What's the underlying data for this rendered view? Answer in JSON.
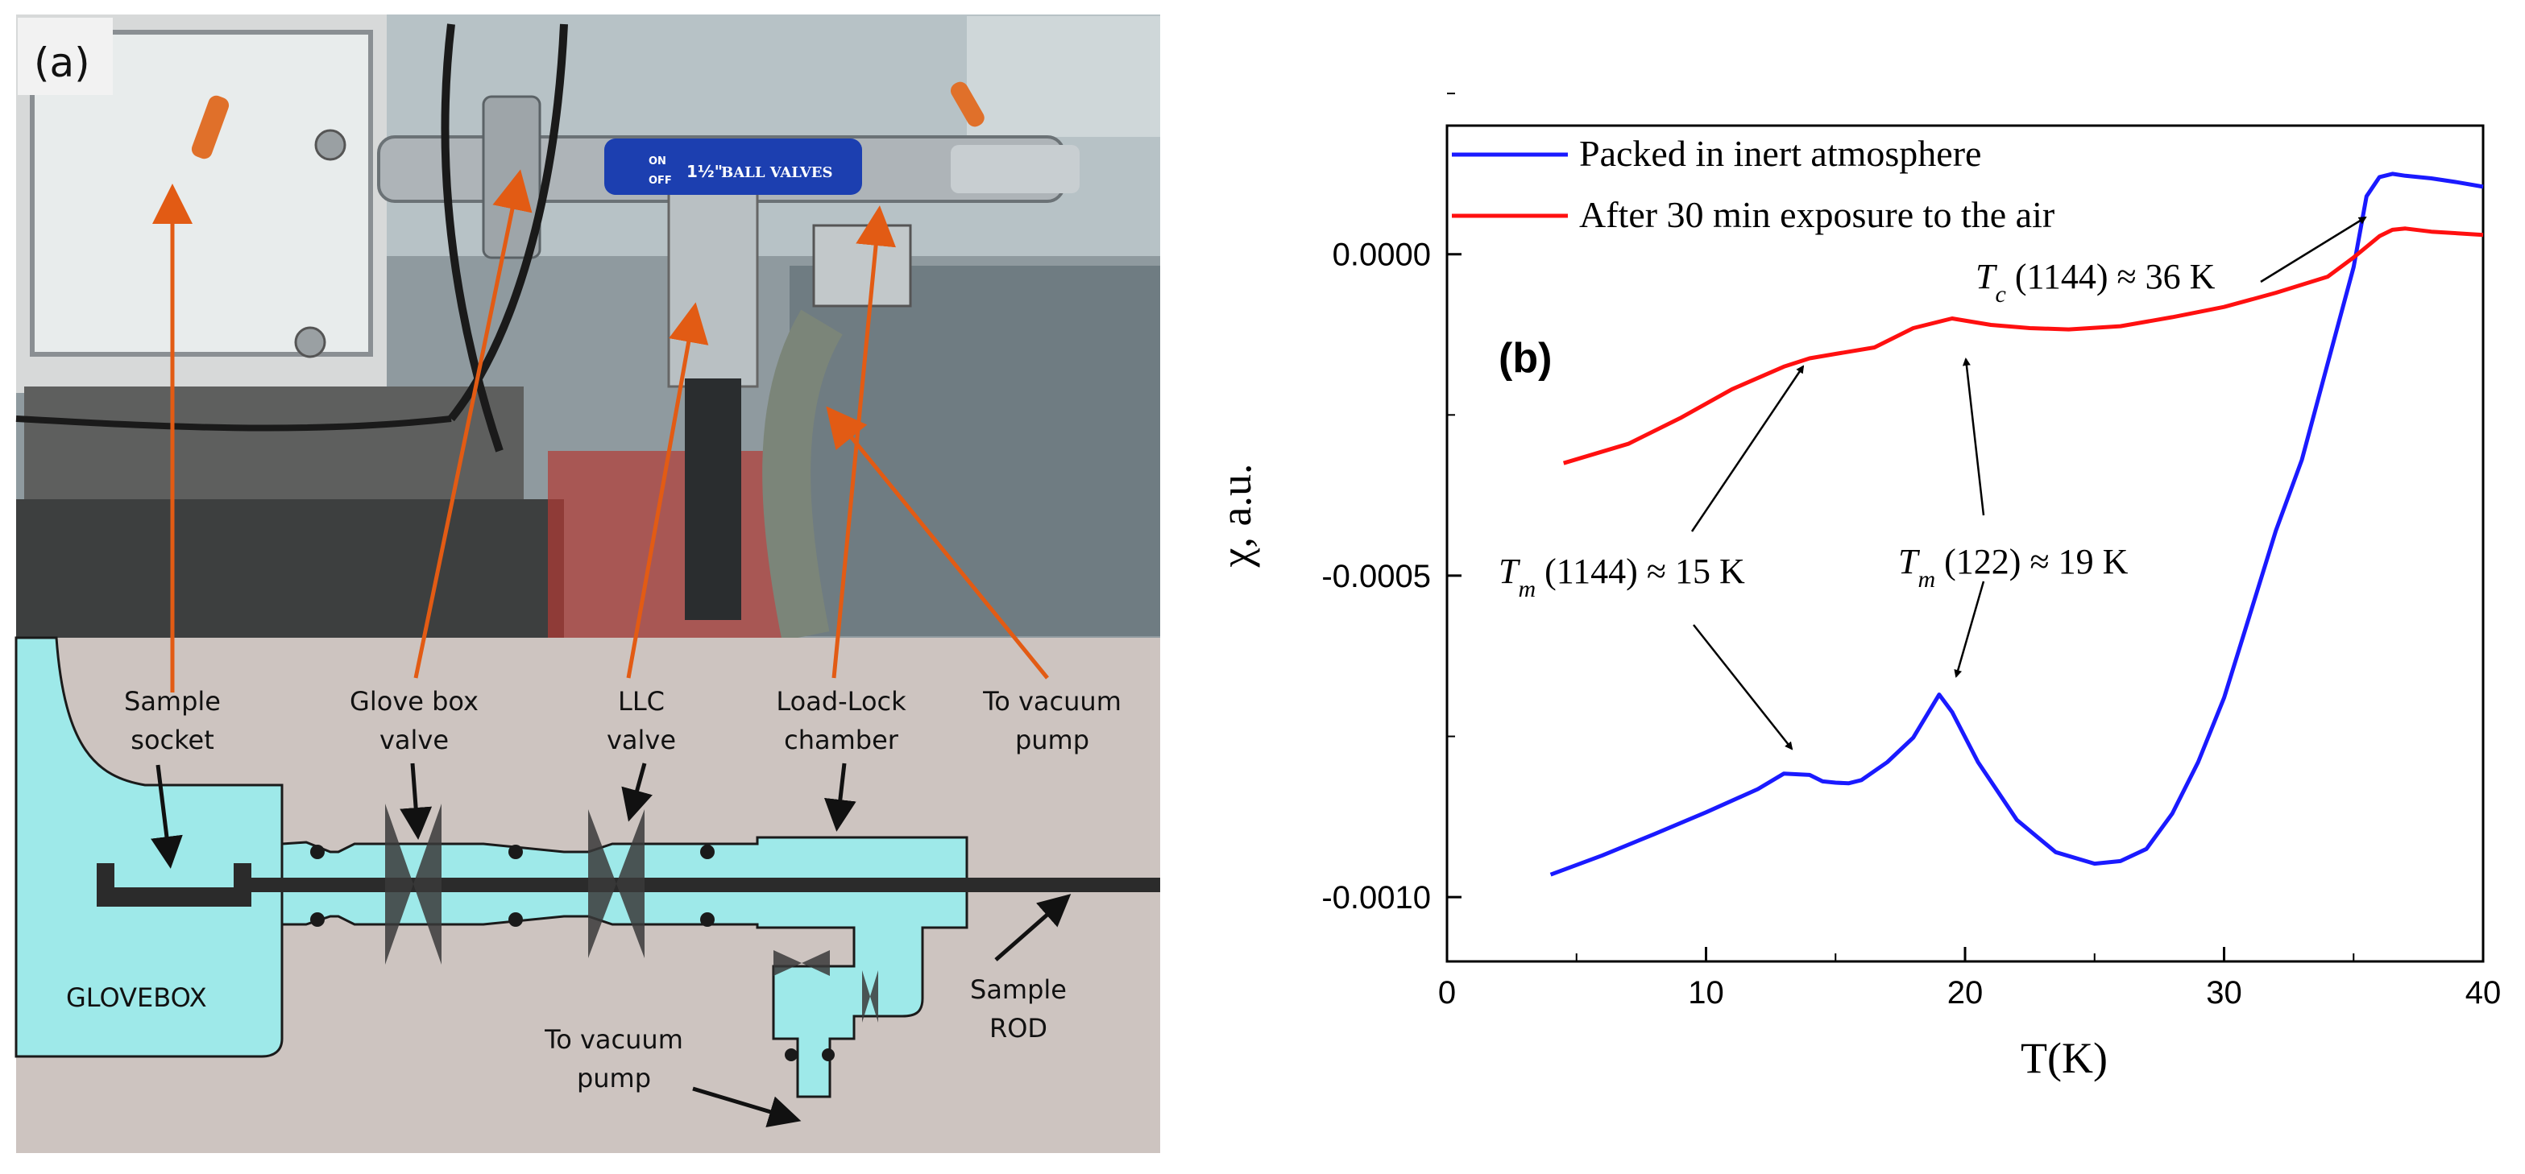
{
  "panel_a": {
    "label": "(a)",
    "photo_labels": {
      "valve_on": "ON",
      "valve_off": "OFF",
      "valve_size": "1½\"",
      "valve_text": "BALL VALVES"
    },
    "diagram_labels": {
      "sample_socket_1": "Sample",
      "sample_socket_2": "socket",
      "glove_box_valve_1": "Glove box",
      "glove_box_valve_2": "valve",
      "llc_valve_1": "LLC",
      "llc_valve_2": "valve",
      "load_lock_1": "Load-Lock",
      "load_lock_2": "chamber",
      "to_vacuum_top_1": "To vacuum",
      "to_vacuum_top_2": "pump",
      "glovebox": "GLOVEBOX",
      "to_vacuum_bottom_1": "To vacuum",
      "to_vacuum_bottom_2": "pump",
      "sample_rod_1": "Sample",
      "sample_rod_2": "ROD"
    },
    "colors": {
      "cyan": "#9ee9e9",
      "grey": "#cdc4c0",
      "arrow_orange": "#e25b14",
      "dark": "#2b2b2b"
    }
  },
  "chart_data": {
    "type": "line",
    "panel_label": "(b)",
    "xlabel": "T(K)",
    "ylabel": "χ, a.u.",
    "xlim": [
      0,
      40
    ],
    "ylim": [
      -0.0011,
      0.0002
    ],
    "xticks": [
      0,
      10,
      20,
      30,
      40
    ],
    "xtick_labels": [
      "0",
      "10",
      "20",
      "30",
      "40"
    ],
    "yticks": [
      0.0,
      -0.0005,
      -0.001
    ],
    "ytick_labels": [
      "0.0000",
      "-0.0005",
      "-0.0010"
    ],
    "series": [
      {
        "name": "Packed in inert atmosphere",
        "color": "#1a1aff",
        "x": [
          4.0,
          6,
          8,
          10,
          12,
          13.0,
          14.0,
          14.5,
          15.0,
          15.5,
          16.0,
          17.0,
          18.0,
          19.0,
          19.5,
          20.5,
          22.0,
          23.5,
          25.0,
          26.0,
          27.0,
          28.0,
          29.0,
          30.0,
          31.0,
          32.0,
          33.0,
          34.0,
          35.0,
          35.5,
          36.0,
          36.5,
          37.0,
          38.0,
          39.0,
          40.0
        ],
        "y": [
          -0.000965,
          -0.000935,
          -0.000902,
          -0.000868,
          -0.000832,
          -0.000808,
          -0.00081,
          -0.00082,
          -0.000822,
          -0.000823,
          -0.000818,
          -0.00079,
          -0.000752,
          -0.000685,
          -0.000712,
          -0.00079,
          -0.00088,
          -0.00093,
          -0.000948,
          -0.000944,
          -0.000925,
          -0.00087,
          -0.00079,
          -0.00069,
          -0.00056,
          -0.00043,
          -0.00032,
          -0.00017,
          -2e-05,
          9e-05,
          0.00012,
          0.000125,
          0.000122,
          0.000118,
          0.000112,
          0.000105
        ]
      },
      {
        "name": "After 30 min exposure to the air",
        "color": "#ff1010",
        "x": [
          4.5,
          7,
          9,
          11,
          13,
          14.0,
          15.0,
          16.5,
          18.0,
          19.5,
          21.0,
          22.5,
          24.0,
          26.0,
          28.0,
          30.0,
          32.0,
          34.0,
          35.0,
          36.0,
          36.5,
          37.0,
          38.0,
          40.0
        ],
        "y": [
          -0.000325,
          -0.000295,
          -0.000255,
          -0.00021,
          -0.000175,
          -0.000162,
          -0.000155,
          -0.000145,
          -0.000115,
          -0.0001,
          -0.00011,
          -0.000115,
          -0.000117,
          -0.000112,
          -9.8e-05,
          -8.2e-05,
          -6e-05,
          -3.5e-05,
          -5e-06,
          2.8e-05,
          3.8e-05,
          4e-05,
          3.5e-05,
          3e-05
        ]
      }
    ],
    "annotations": [
      {
        "symbol": "T",
        "sub": "c",
        "text": " (1144) ≈ 36 K"
      },
      {
        "symbol": "T",
        "sub": "m",
        "text": " (1144) ≈ 15 K"
      },
      {
        "symbol": "T",
        "sub": "m",
        "text": " (122) ≈ 19 K"
      }
    ]
  }
}
